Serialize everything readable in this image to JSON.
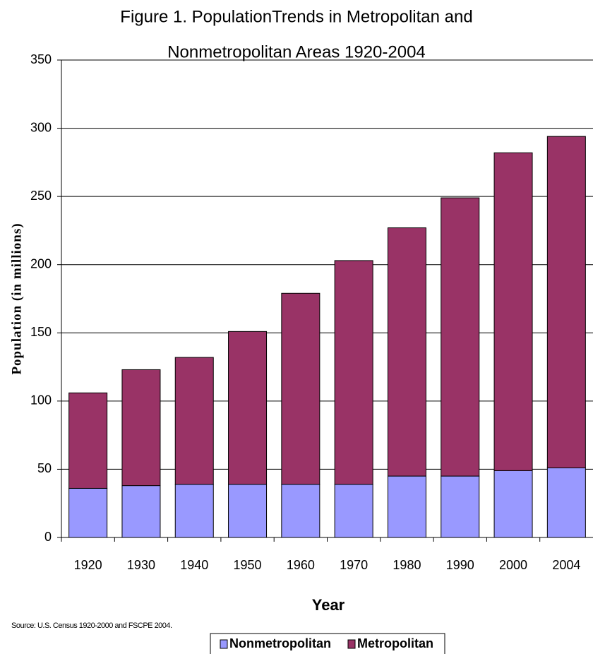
{
  "chart_data": {
    "type": "stacked_bar",
    "title_lines": [
      "Figure 1. PopulationTrends in Metropolitan and",
      "Nonmetropolitan Areas 1920-2004"
    ],
    "y_label": "Population (in millions)",
    "x_label": "Year",
    "source": "Source: U.S. Census 1920-2000 and FSCPE 2004.",
    "categories": [
      "1920",
      "1930",
      "1940",
      "1950",
      "1960",
      "1970",
      "1980",
      "1990",
      "2000",
      "2004"
    ],
    "series": [
      {
        "name": "Nonmetropolitan",
        "color": "#9999ff",
        "values": [
          36,
          38,
          39,
          39,
          39,
          39,
          45,
          45,
          49,
          51
        ]
      },
      {
        "name": "Metropolitan",
        "color": "#993366",
        "values": [
          70,
          85,
          93,
          112,
          140,
          164,
          182,
          204,
          233,
          243
        ]
      }
    ],
    "ylim": [
      0,
      350
    ],
    "yticks": [
      0,
      50,
      100,
      150,
      200,
      250,
      300,
      350
    ],
    "grid": true,
    "legend": "bottom"
  }
}
